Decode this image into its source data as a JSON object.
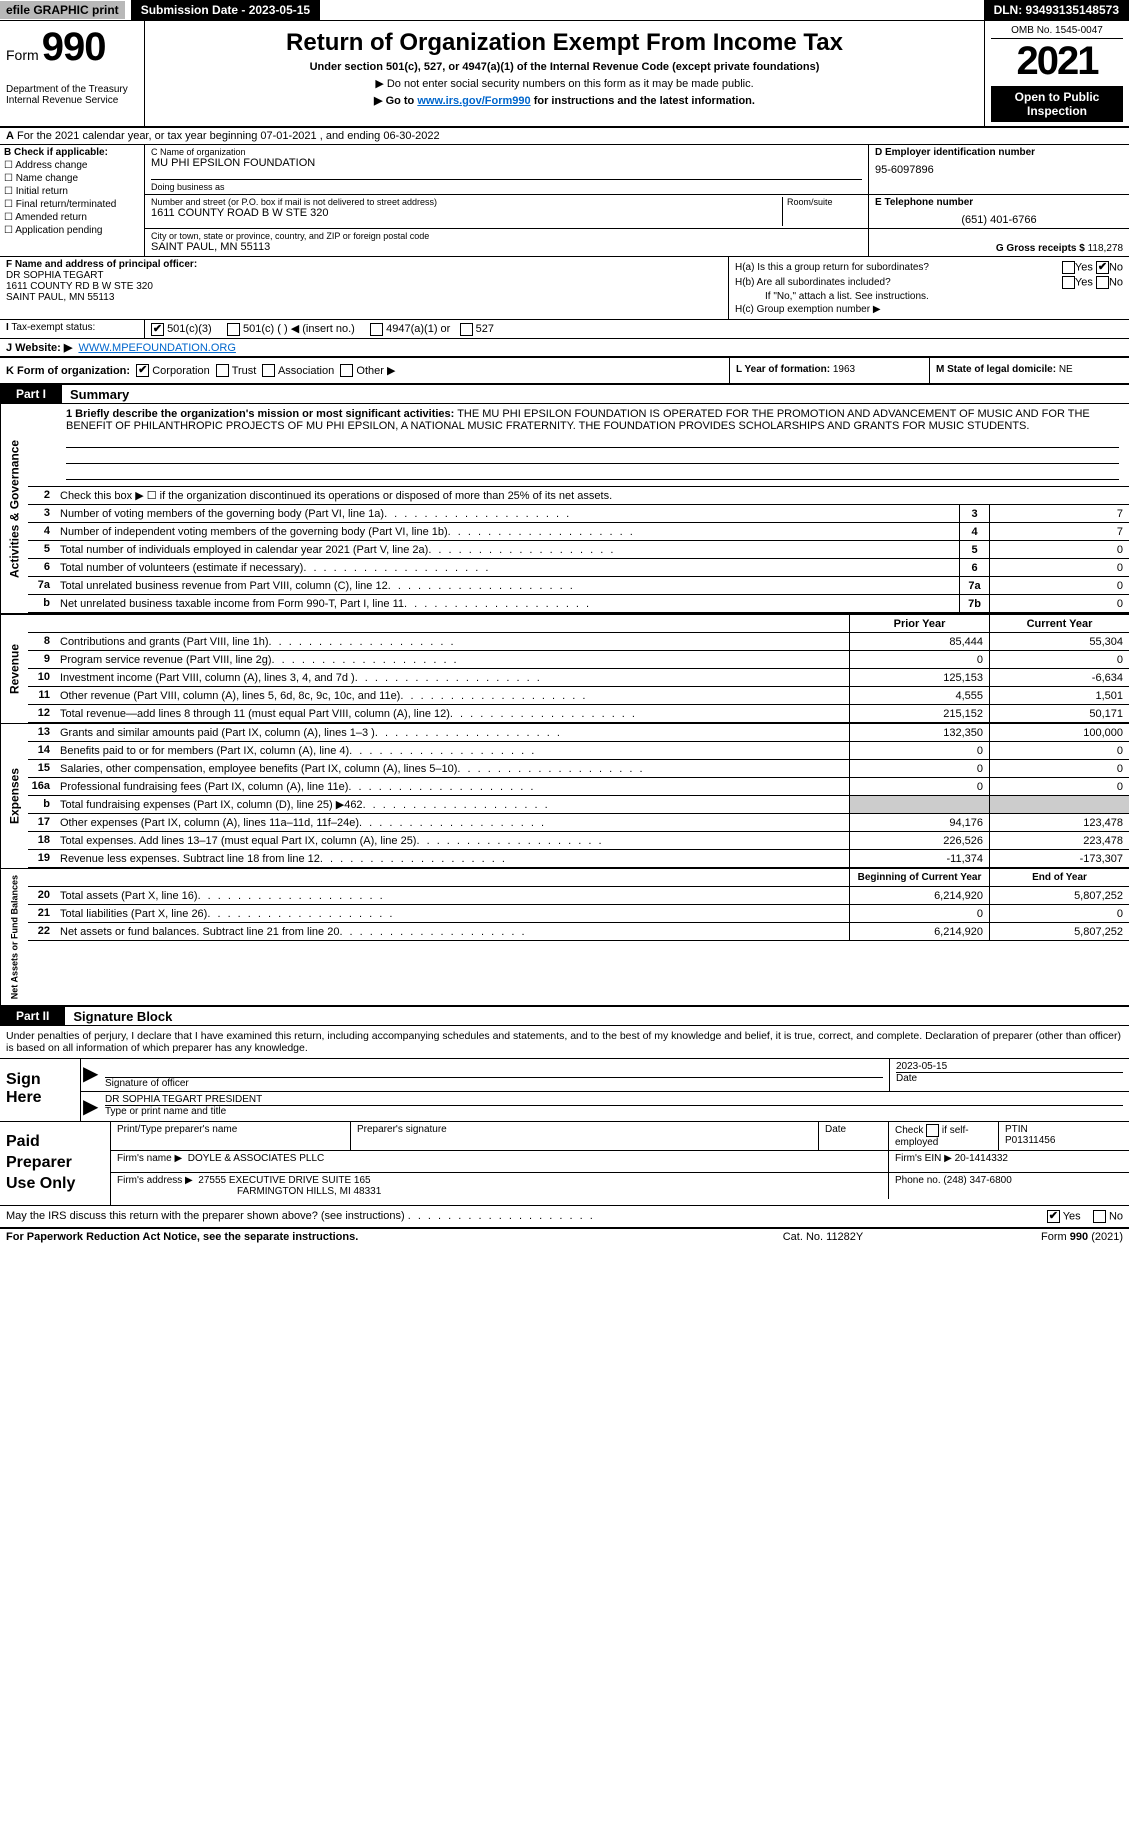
{
  "topbar": {
    "efile": "efile GRAPHIC print",
    "submission": "Submission Date - 2023-05-15",
    "dln": "DLN: 93493135148573"
  },
  "header": {
    "form_word": "Form",
    "form_number": "990",
    "dept": "Department of the Treasury Internal Revenue Service",
    "title": "Return of Organization Exempt From Income Tax",
    "subtitle": "Under section 501(c), 527, or 4947(a)(1) of the Internal Revenue Code (except private foundations)",
    "note": "▶ Do not enter social security numbers on this form as it may be made public.",
    "link_pre": "▶ Go to ",
    "link_url": "www.irs.gov/Form990",
    "link_post": " for instructions and the latest information.",
    "omb": "OMB No. 1545-0047",
    "year": "2021",
    "inspection": "Open to Public Inspection"
  },
  "line_a": "For the 2021 calendar year, or tax year beginning 07-01-2021    , and ending 06-30-2022",
  "col_b": {
    "label": "B Check if applicable:",
    "items": [
      "Address change",
      "Name change",
      "Initial return",
      "Final return/terminated",
      "Amended return",
      "Application pending"
    ]
  },
  "col_c": {
    "name_lbl": "C Name of organization",
    "name_val": "MU PHI EPSILON FOUNDATION",
    "dba_lbl": "Doing business as",
    "dba_val": "",
    "street_lbl": "Number and street (or P.O. box if mail is not delivered to street address)",
    "room_lbl": "Room/suite",
    "street_val": "1611 COUNTY ROAD B W STE 320",
    "city_lbl": "City or town, state or province, country, and ZIP or foreign postal code",
    "city_val": "SAINT PAUL, MN  55113"
  },
  "col_d": {
    "ein_lbl": "D Employer identification number",
    "ein_val": "95-6097896",
    "phone_lbl": "E Telephone number",
    "phone_val": "(651) 401-6766",
    "gross_lbl": "G Gross receipts $",
    "gross_val": "118,278"
  },
  "col_f": {
    "lbl": "F Name and address of principal officer:",
    "name": "DR SOPHIA TEGART",
    "addr1": "1611 COUNTY RD B W STE 320",
    "addr2": "SAINT PAUL, MN  55113"
  },
  "col_h": {
    "a": "H(a)  Is this a group return for subordinates?",
    "b": "H(b)  Are all subordinates included?",
    "b2": "If \"No,\" attach a list. See instructions.",
    "c": "H(c)  Group exemption number ▶",
    "yes": "Yes",
    "no": "No"
  },
  "row_i": {
    "lbl": "Tax-exempt status:",
    "opts": [
      "501(c)(3)",
      "501(c) (   ) ◀ (insert no.)",
      "4947(a)(1) or",
      "527"
    ]
  },
  "row_j": {
    "lbl": "J Website: ▶",
    "val": "WWW.MPEFOUNDATION.ORG"
  },
  "row_k": {
    "lbl": "K Form of organization:",
    "opts": [
      "Corporation",
      "Trust",
      "Association",
      "Other ▶"
    ]
  },
  "row_l": {
    "year_lbl": "L Year of formation:",
    "year_val": "1963",
    "state_lbl": "M State of legal domicile:",
    "state_val": "NE"
  },
  "part1": {
    "header": "Part I",
    "title": "Summary",
    "side_labels": [
      "Activities & Governance",
      "Revenue",
      "Expenses",
      "Net Assets or Fund Balances"
    ],
    "q1_lbl": "1 Briefly describe the organization's mission or most significant activities:",
    "q1_text": "THE MU PHI EPSILON FOUNDATION IS OPERATED FOR THE PROMOTION AND ADVANCEMENT OF MUSIC AND FOR THE BENEFIT OF PHILANTHROPIC PROJECTS OF MU PHI EPSILON, A NATIONAL MUSIC FRATERNITY. THE FOUNDATION PROVIDES SCHOLARSHIPS AND GRANTS FOR MUSIC STUDENTS.",
    "q2": "Check this box ▶ ☐ if the organization discontinued its operations or disposed of more than 25% of its net assets.",
    "lines": [
      {
        "n": "3",
        "t": "Number of voting members of the governing body (Part VI, line 1a)",
        "box": "3",
        "v": "7"
      },
      {
        "n": "4",
        "t": "Number of independent voting members of the governing body (Part VI, line 1b)",
        "box": "4",
        "v": "7"
      },
      {
        "n": "5",
        "t": "Total number of individuals employed in calendar year 2021 (Part V, line 2a)",
        "box": "5",
        "v": "0"
      },
      {
        "n": "6",
        "t": "Total number of volunteers (estimate if necessary)",
        "box": "6",
        "v": "0"
      },
      {
        "n": "7a",
        "t": "Total unrelated business revenue from Part VIII, column (C), line 12",
        "box": "7a",
        "v": "0"
      },
      {
        "n": "b",
        "t": "Net unrelated business taxable income from Form 990-T, Part I, line 11",
        "box": "7b",
        "v": "0"
      }
    ],
    "col_headers": {
      "prior": "Prior Year",
      "current": "Current Year"
    },
    "rev_lines": [
      {
        "n": "8",
        "t": "Contributions and grants (Part VIII, line 1h)",
        "p": "85,444",
        "c": "55,304"
      },
      {
        "n": "9",
        "t": "Program service revenue (Part VIII, line 2g)",
        "p": "0",
        "c": "0"
      },
      {
        "n": "10",
        "t": "Investment income (Part VIII, column (A), lines 3, 4, and 7d )",
        "p": "125,153",
        "c": "-6,634"
      },
      {
        "n": "11",
        "t": "Other revenue (Part VIII, column (A), lines 5, 6d, 8c, 9c, 10c, and 11e)",
        "p": "4,555",
        "c": "1,501"
      },
      {
        "n": "12",
        "t": "Total revenue—add lines 8 through 11 (must equal Part VIII, column (A), line 12)",
        "p": "215,152",
        "c": "50,171"
      }
    ],
    "exp_lines": [
      {
        "n": "13",
        "t": "Grants and similar amounts paid (Part IX, column (A), lines 1–3 )",
        "p": "132,350",
        "c": "100,000"
      },
      {
        "n": "14",
        "t": "Benefits paid to or for members (Part IX, column (A), line 4)",
        "p": "0",
        "c": "0"
      },
      {
        "n": "15",
        "t": "Salaries, other compensation, employee benefits (Part IX, column (A), lines 5–10)",
        "p": "0",
        "c": "0"
      },
      {
        "n": "16a",
        "t": "Professional fundraising fees (Part IX, column (A), line 11e)",
        "p": "0",
        "c": "0"
      },
      {
        "n": "b",
        "t": "Total fundraising expenses (Part IX, column (D), line 25) ▶462",
        "p": "",
        "c": ""
      },
      {
        "n": "17",
        "t": "Other expenses (Part IX, column (A), lines 11a–11d, 11f–24e)",
        "p": "94,176",
        "c": "123,478"
      },
      {
        "n": "18",
        "t": "Total expenses. Add lines 13–17 (must equal Part IX, column (A), line 25)",
        "p": "226,526",
        "c": "223,478"
      },
      {
        "n": "19",
        "t": "Revenue less expenses. Subtract line 18 from line 12",
        "p": "-11,374",
        "c": "-173,307"
      }
    ],
    "net_headers": {
      "begin": "Beginning of Current Year",
      "end": "End of Year"
    },
    "net_lines": [
      {
        "n": "20",
        "t": "Total assets (Part X, line 16)",
        "p": "6,214,920",
        "c": "5,807,252"
      },
      {
        "n": "21",
        "t": "Total liabilities (Part X, line 26)",
        "p": "0",
        "c": "0"
      },
      {
        "n": "22",
        "t": "Net assets or fund balances. Subtract line 21 from line 20",
        "p": "6,214,920",
        "c": "5,807,252"
      }
    ]
  },
  "part2": {
    "header": "Part II",
    "title": "Signature Block",
    "text": "Under penalties of perjury, I declare that I have examined this return, including accompanying schedules and statements, and to the best of my knowledge and belief, it is true, correct, and complete. Declaration of preparer (other than officer) is based on all information of which preparer has any knowledge."
  },
  "sign": {
    "label": "Sign Here",
    "sig_lbl": "Signature of officer",
    "date_lbl": "Date",
    "date_val": "2023-05-15",
    "name_val": "DR SOPHIA TEGART  PRESIDENT",
    "name_lbl": "Type or print name and title"
  },
  "paid": {
    "label": "Paid Preparer Use Only",
    "h1": "Print/Type preparer's name",
    "h2": "Preparer's signature",
    "h3": "Date",
    "h4_a": "Check",
    "h4_b": "if self-employed",
    "h5": "PTIN",
    "ptin": "P01311456",
    "firm_lbl": "Firm's name    ▶",
    "firm_val": "DOYLE & ASSOCIATES PLLC",
    "ein_lbl": "Firm's EIN ▶",
    "ein_val": "20-1414332",
    "addr_lbl": "Firm's address ▶",
    "addr_val1": "27555 EXECUTIVE DRIVE SUITE 165",
    "addr_val2": "FARMINGTON HILLS, MI  48331",
    "phone_lbl": "Phone no.",
    "phone_val": "(248) 347-6800"
  },
  "discuss": {
    "text": "May the IRS discuss this return with the preparer shown above? (see instructions)",
    "yes": "Yes",
    "no": "No"
  },
  "footer": {
    "f1": "For Paperwork Reduction Act Notice, see the separate instructions.",
    "f2": "Cat. No. 11282Y",
    "f3": "Form 990 (2021)"
  }
}
